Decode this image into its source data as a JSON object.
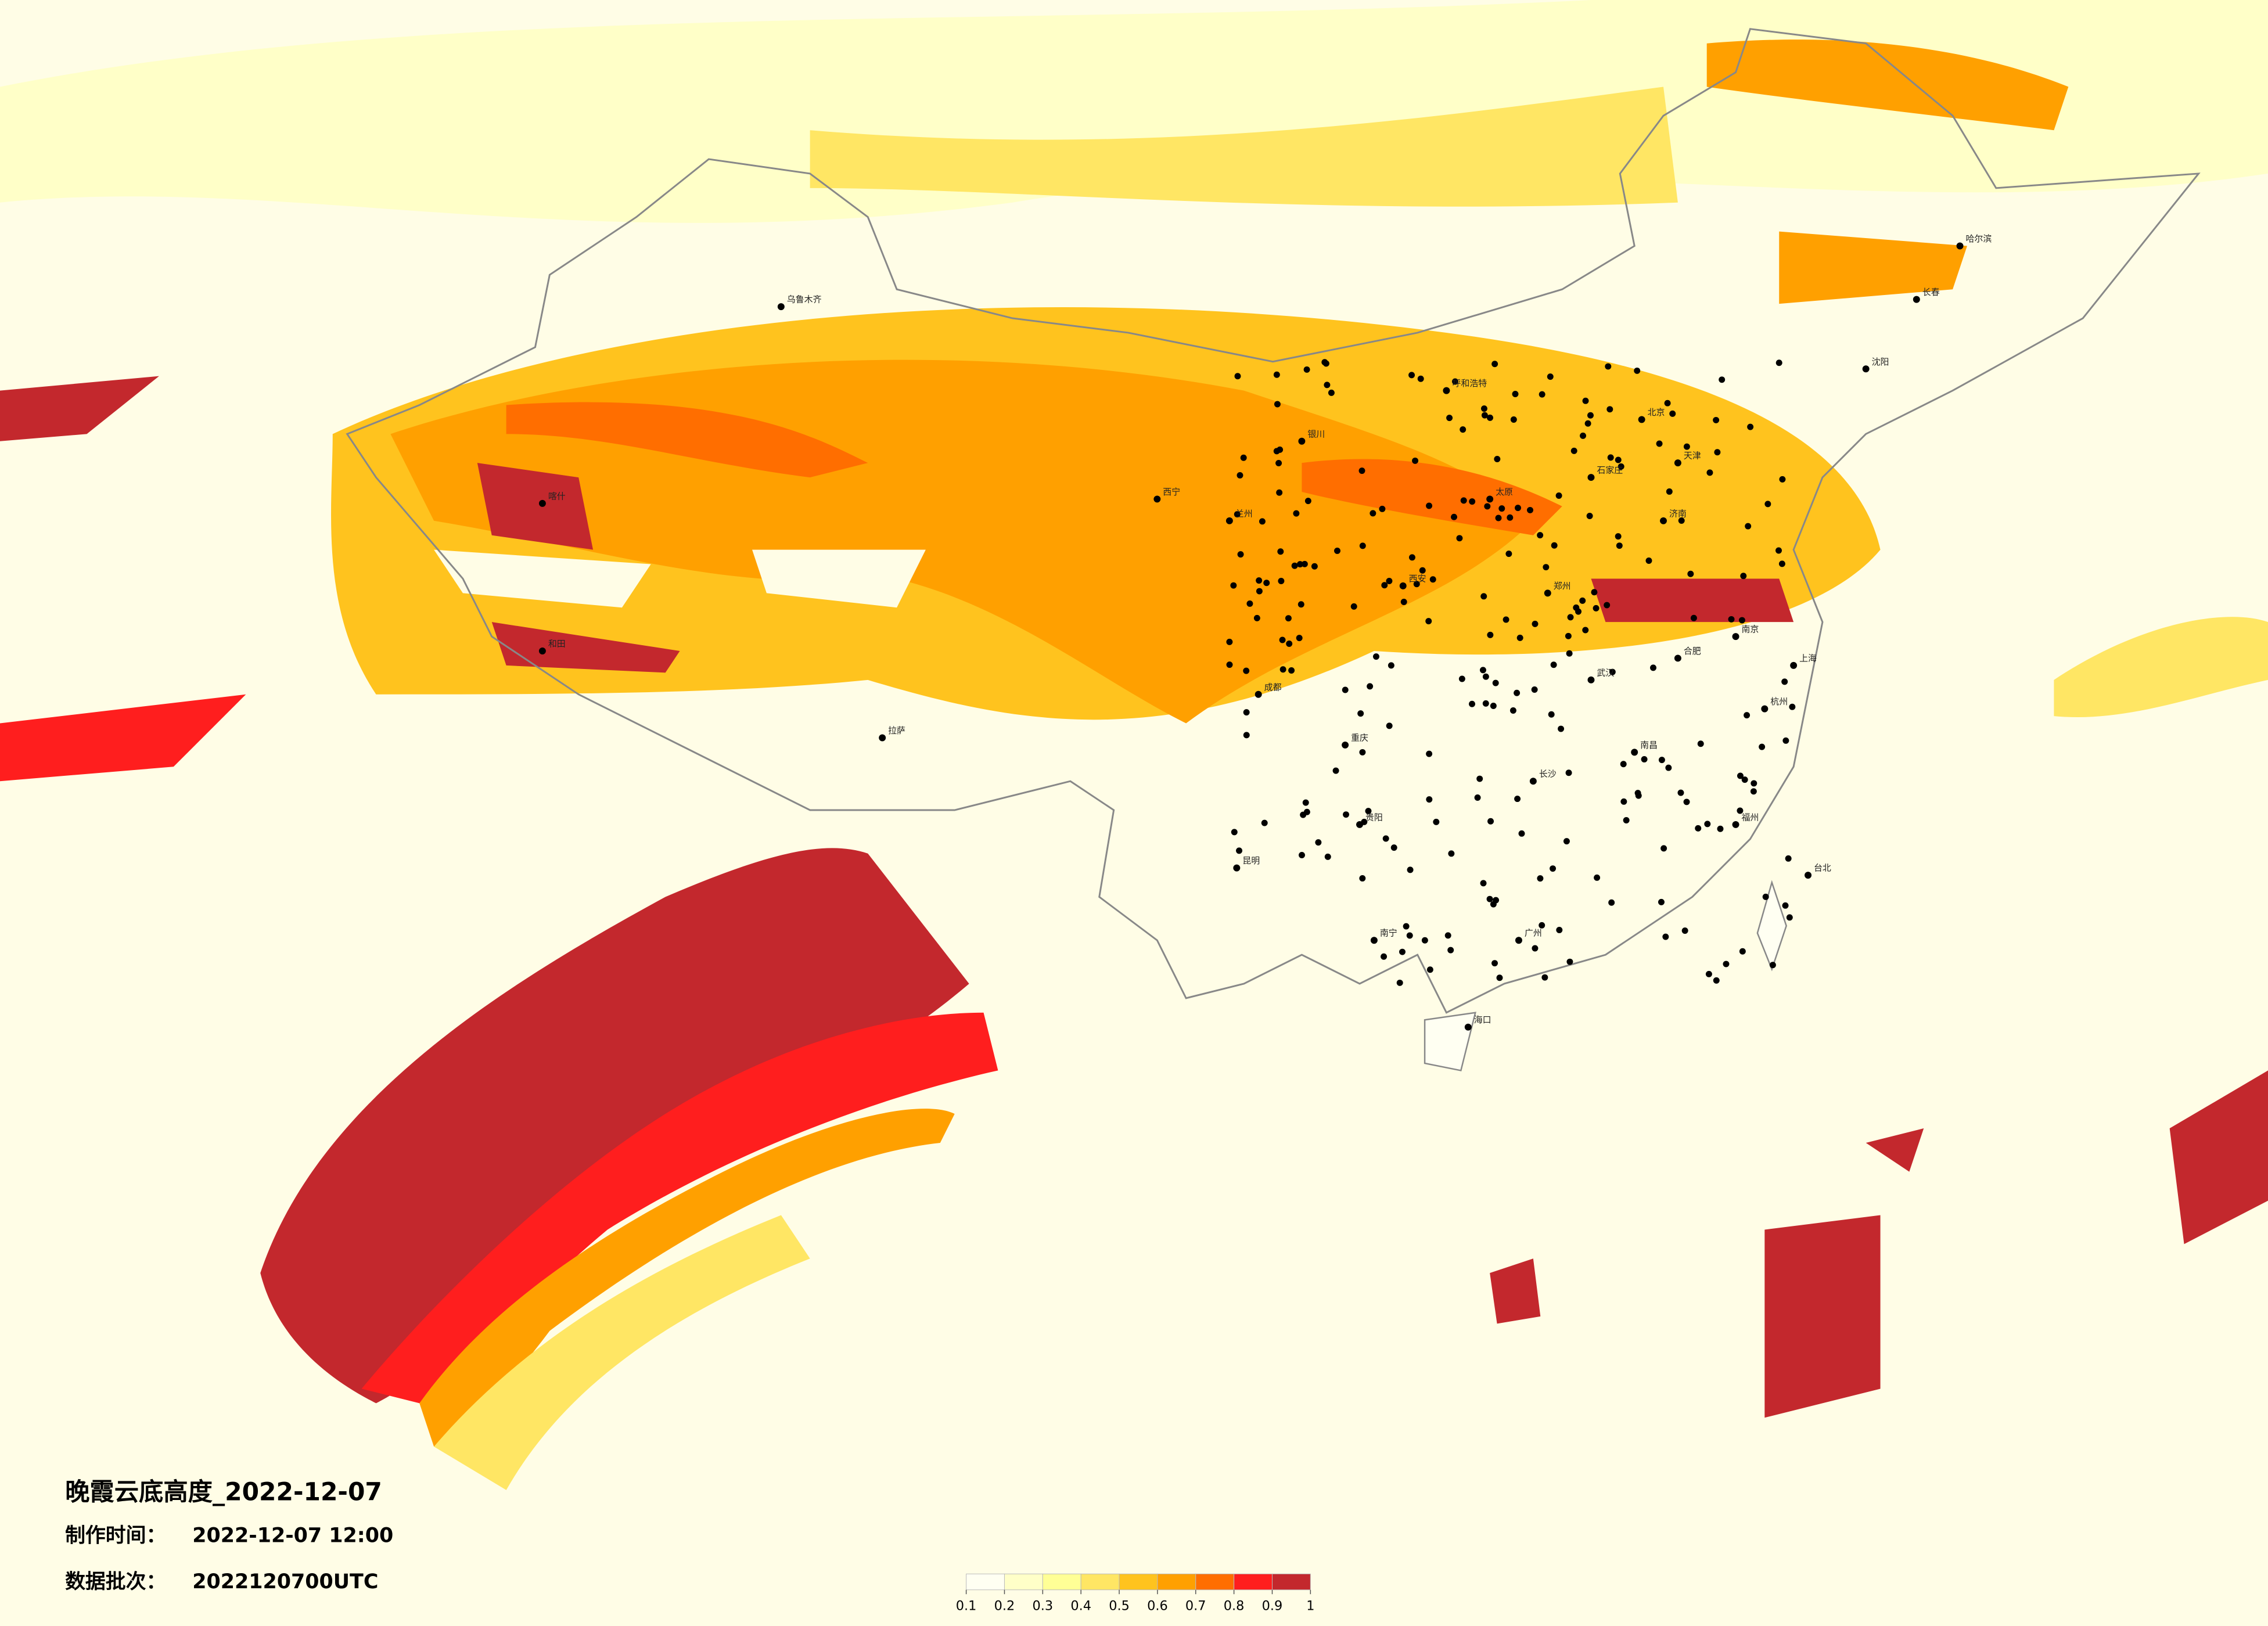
{
  "title": "晚霞云底高度_2022-12-07",
  "made_time": {
    "label": "制作时间：",
    "value": "2022-12-07 12:00"
  },
  "batch": {
    "label": "数据批次：",
    "value": "2022120700UTC"
  },
  "colorbar": {
    "ticks": [
      0.1,
      0.2,
      0.3,
      0.4,
      0.5,
      0.6,
      0.7,
      0.8,
      0.9,
      1
    ],
    "colors": [
      "#fffff2",
      "#ffffc8",
      "#ffff96",
      "#ffe664",
      "#ffc31e",
      "#ffa000",
      "#ff6e00",
      "#ff1e1e",
      "#c3282d"
    ]
  },
  "cities": [
    "哈尔滨",
    "长春",
    "沈阳",
    "北京",
    "天津",
    "石家庄",
    "太原",
    "呼和浩特",
    "济南",
    "郑州",
    "西安",
    "兰州",
    "西宁",
    "银川",
    "乌鲁木齐",
    "拉萨",
    "成都",
    "重庆",
    "贵阳",
    "昆明",
    "南宁",
    "广州",
    "长沙",
    "武汉",
    "南京",
    "上海",
    "杭州",
    "福州",
    "南昌",
    "合肥",
    "海口",
    "台北",
    "喀什",
    "和田"
  ]
}
